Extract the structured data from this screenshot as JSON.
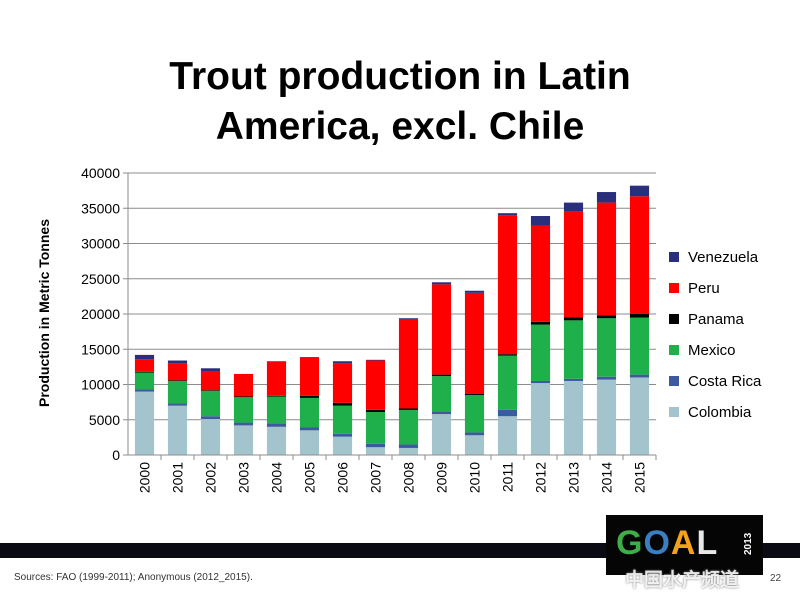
{
  "slide": {
    "title_line1": "Trout production in Latin",
    "title_line2": "America, excl. Chile",
    "sources": "Sources: FAO (1999-2011); Anonymous (2012_2015).",
    "page_number": "22",
    "logo_text": "GOAL",
    "logo_year": "2013",
    "watermark": "中国水产频道"
  },
  "chart_data": {
    "type": "bar",
    "stacked": true,
    "title": "",
    "xlabel": "",
    "ylabel": "Production in Metric Tonnes",
    "ylim": [
      0,
      40000
    ],
    "yticks": [
      0,
      5000,
      10000,
      15000,
      20000,
      25000,
      30000,
      35000,
      40000
    ],
    "ytick_labels": [
      "0",
      "5000",
      "10000",
      "15000",
      "20000",
      "25000",
      "30000",
      "35000",
      "40000"
    ],
    "grid": true,
    "legend_position": "right",
    "categories": [
      "2000",
      "2001",
      "2002",
      "2003",
      "2004",
      "2005",
      "2006",
      "2007",
      "2008",
      "2009",
      "2010",
      "2011",
      "2012",
      "2013",
      "2014",
      "2015"
    ],
    "series": [
      {
        "name": "Colombia",
        "color": "#a3c4cc",
        "values": [
          9000,
          7000,
          5100,
          4200,
          4000,
          3500,
          2600,
          1100,
          1000,
          5800,
          2800,
          5500,
          10200,
          10500,
          10700,
          11000
        ]
      },
      {
        "name": "Costa Rica",
        "color": "#3d5a9e",
        "values": [
          300,
          300,
          400,
          400,
          500,
          400,
          400,
          500,
          500,
          400,
          400,
          900,
          300,
          300,
          400,
          400
        ]
      },
      {
        "name": "Mexico",
        "color": "#1fb04b",
        "values": [
          2400,
          3200,
          3600,
          3600,
          3800,
          4200,
          4000,
          4500,
          4900,
          5000,
          5300,
          7700,
          8000,
          8300,
          8300,
          8100
        ]
      },
      {
        "name": "Panama",
        "color": "#000000",
        "values": [
          100,
          100,
          100,
          100,
          100,
          300,
          400,
          300,
          200,
          200,
          200,
          200,
          400,
          400,
          400,
          500
        ]
      },
      {
        "name": "Peru",
        "color": "#ff0000",
        "values": [
          1800,
          2400,
          2600,
          3200,
          4800,
          5400,
          5600,
          7000,
          12600,
          12800,
          14300,
          19700,
          13600,
          15000,
          16000,
          16700
        ]
      },
      {
        "name": "Venezuela",
        "color": "#2a2f7c",
        "values": [
          600,
          400,
          500,
          0,
          100,
          100,
          300,
          100,
          200,
          300,
          300,
          300,
          1400,
          1300,
          1500,
          1500
        ]
      }
    ]
  }
}
